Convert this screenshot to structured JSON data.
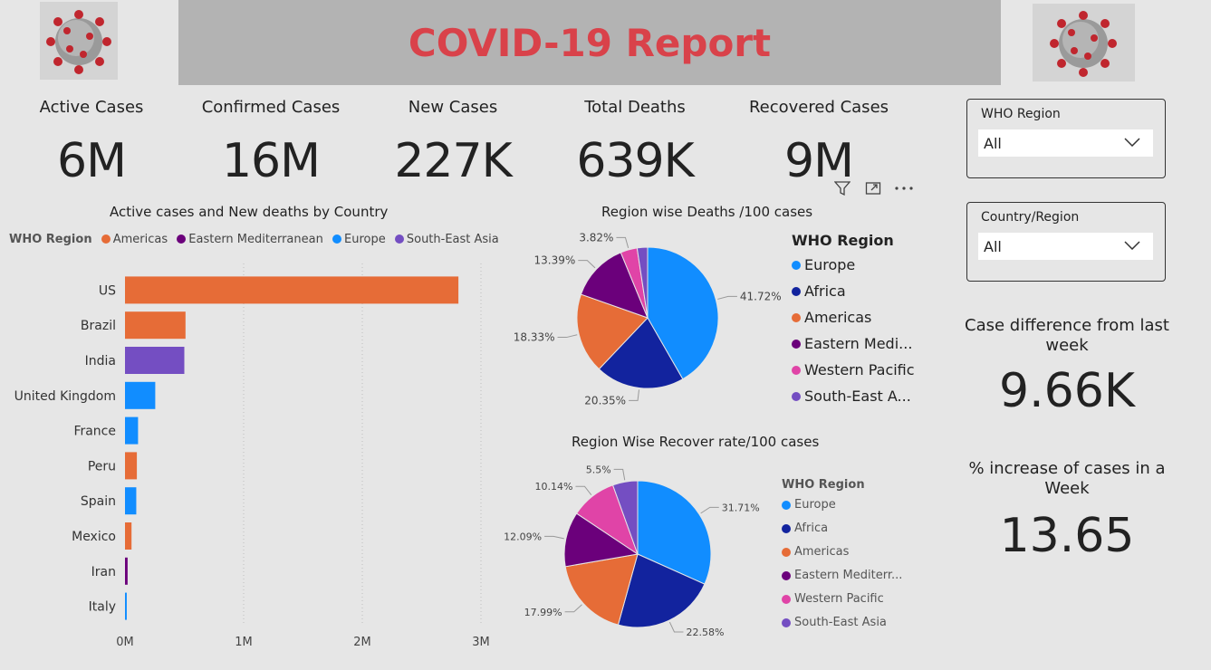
{
  "header": {
    "title": "COVID-19 Report"
  },
  "kpis": [
    {
      "label": "Active Cases",
      "value": "6M"
    },
    {
      "label": "Confirmed Cases",
      "value": "16M"
    },
    {
      "label": "New Cases",
      "value": "227K"
    },
    {
      "label": "Total Deaths",
      "value": "639K"
    },
    {
      "label": "Recovered Cases",
      "value": "9M"
    }
  ],
  "slicers": {
    "who_region": {
      "label": "WHO Region",
      "value": "All"
    },
    "country": {
      "label": "Country/Region",
      "value": "All"
    }
  },
  "side": {
    "diff_label": "Case difference from last week",
    "diff_value": "9.66K",
    "increase_label": "% increase of cases in a Week",
    "increase_value": "13.65"
  },
  "colors": {
    "Europe": "#118dff",
    "Africa": "#12239e",
    "Americas": "#e66c37",
    "Eastern Mediterranean": "#6b007b",
    "Western Pacific": "#e044a7",
    "South-East Asia": "#744ec2",
    "title": "#d9424a"
  },
  "chart_data": [
    {
      "type": "bar",
      "title": "Active cases and New deaths by Country",
      "legend_title": "WHO Region",
      "legend": [
        "Americas",
        "Eastern Mediterranean",
        "Europe",
        "South-East Asia"
      ],
      "categories": [
        "US",
        "Brazil",
        "India",
        "United Kingdom",
        "France",
        "Peru",
        "Spain",
        "Mexico",
        "Iran",
        "Italy"
      ],
      "values": [
        2810000,
        510000,
        500000,
        255000,
        110000,
        100000,
        95000,
        55000,
        22000,
        15000
      ],
      "region": [
        "Americas",
        "Americas",
        "South-East Asia",
        "Europe",
        "Europe",
        "Americas",
        "Europe",
        "Americas",
        "Eastern Mediterranean",
        "Europe"
      ],
      "xticks": [
        "0M",
        "1M",
        "2M",
        "3M"
      ],
      "xlim": [
        0,
        3000000
      ],
      "grid": true,
      "legend_position": "top"
    },
    {
      "type": "pie",
      "title": "Region wise Deaths /100 cases",
      "legend_title": "WHO Region",
      "legend": [
        "Europe",
        "Africa",
        "Americas",
        "Eastern Medi...",
        "Western Pacific",
        "South-East A..."
      ],
      "labels": [
        "Europe",
        "Africa",
        "Americas",
        "Eastern Mediterranean",
        "Western Pacific",
        "South-East Asia"
      ],
      "values": [
        41.72,
        20.35,
        18.33,
        13.39,
        3.82,
        2.39
      ],
      "display": [
        "41.72%",
        "20.35%",
        "18.33%",
        "13.39%",
        "3.82%",
        ""
      ],
      "legend_position": "right"
    },
    {
      "type": "pie",
      "title": "Region Wise Recover rate/100 cases",
      "legend_title": "WHO Region",
      "legend": [
        "Europe",
        "Africa",
        "Americas",
        "Eastern Mediterr...",
        "Western Pacific",
        "South-East Asia"
      ],
      "labels": [
        "Europe",
        "Africa",
        "Americas",
        "Eastern Mediterranean",
        "Western Pacific",
        "South-East Asia"
      ],
      "values": [
        31.71,
        22.58,
        17.99,
        12.09,
        10.14,
        5.5
      ],
      "display": [
        "31.71%",
        "22.58%",
        "17.99%",
        "12.09%",
        "10.14%",
        "5.5%"
      ],
      "legend_position": "right"
    }
  ]
}
